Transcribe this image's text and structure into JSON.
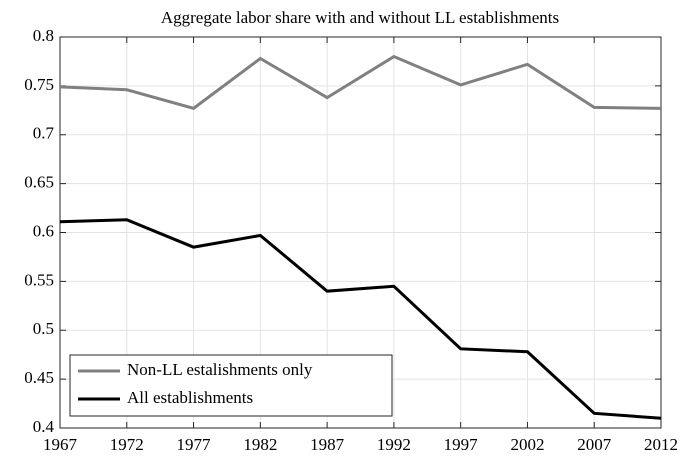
{
  "chart_data": {
    "type": "line",
    "title": "Aggregate labor share with and without LL establishments",
    "x": [
      1967,
      1972,
      1977,
      1982,
      1987,
      1992,
      1997,
      2002,
      2007,
      2012
    ],
    "series": [
      {
        "name": "Non-LL estalishments only",
        "color": "#808080",
        "values": [
          0.749,
          0.746,
          0.727,
          0.778,
          0.738,
          0.78,
          0.751,
          0.772,
          0.728,
          0.727
        ]
      },
      {
        "name": "All establishments",
        "color": "#000000",
        "values": [
          0.611,
          0.613,
          0.585,
          0.597,
          0.54,
          0.545,
          0.481,
          0.478,
          0.415,
          0.41
        ]
      }
    ],
    "xlim": [
      1967,
      2012
    ],
    "xticks": [
      1967,
      1972,
      1977,
      1982,
      1987,
      1992,
      1997,
      2002,
      2007,
      2012
    ],
    "ylim": [
      0.4,
      0.8
    ],
    "yticks": [
      0.4,
      0.45,
      0.5,
      0.55,
      0.6,
      0.65,
      0.7,
      0.75,
      0.8
    ],
    "grid": true,
    "legend": "lower-left"
  }
}
